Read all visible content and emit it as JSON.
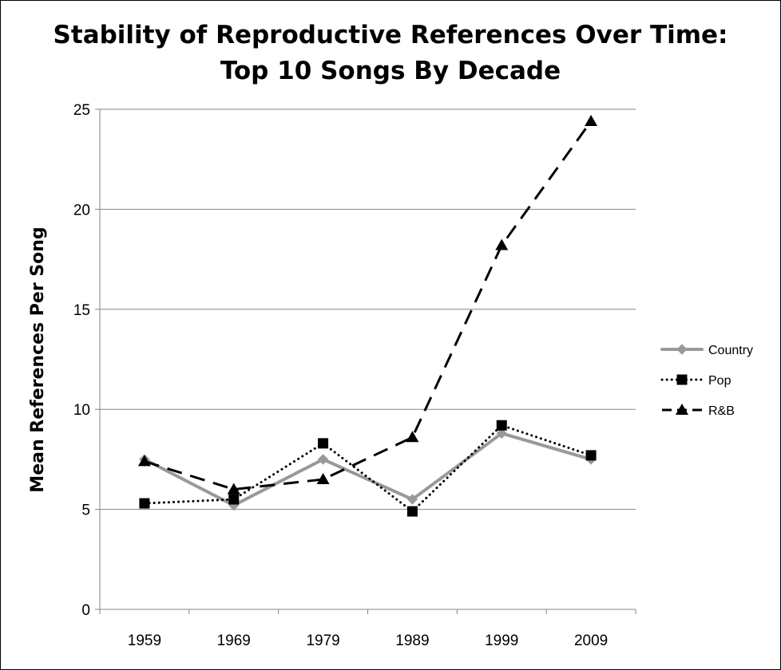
{
  "chart_data": {
    "type": "line",
    "title": "Stability of Reproductive References Over Time:",
    "subtitle": "Top 10 Songs By Decade",
    "xlabel": "",
    "ylabel": "Mean References Per Song",
    "categories": [
      "1959",
      "1969",
      "1979",
      "1989",
      "1999",
      "2009"
    ],
    "ylim": [
      0,
      25
    ],
    "yticks": [
      "0",
      "5",
      "10",
      "15",
      "20",
      "25"
    ],
    "grid": true,
    "legend_position": "right",
    "series": [
      {
        "name": "Country",
        "values": [
          7.5,
          5.2,
          7.5,
          5.5,
          8.8,
          7.5
        ],
        "color": "#999999",
        "line": "solid",
        "marker": "diamond"
      },
      {
        "name": "Pop",
        "values": [
          5.3,
          5.5,
          8.3,
          4.9,
          9.2,
          7.7
        ],
        "color": "#000000",
        "line": "dotted",
        "marker": "square"
      },
      {
        "name": "R&B",
        "values": [
          7.4,
          6.0,
          6.5,
          8.6,
          18.2,
          24.4
        ],
        "color": "#000000",
        "line": "dashed",
        "marker": "triangle"
      }
    ]
  }
}
